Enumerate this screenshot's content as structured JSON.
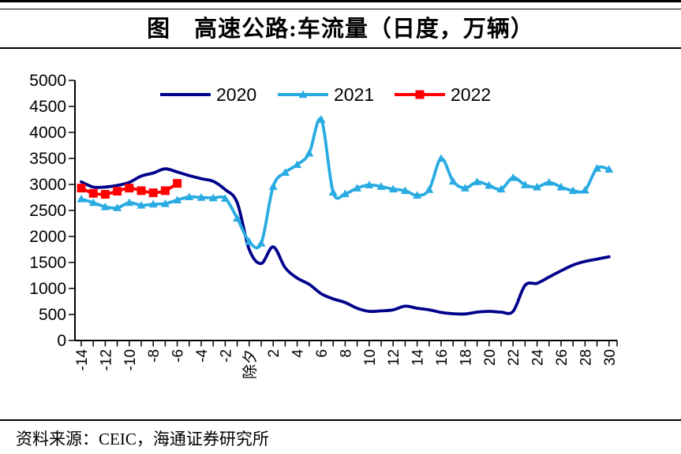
{
  "figure": {
    "title": "图　高速公路:车流量（日度，万辆）",
    "source": "资料来源：CEIC，海通证券研究所"
  },
  "colors": {
    "series_2020": "#00008B",
    "series_2021": "#29ABE2",
    "series_2022": "#FF0000",
    "axis": "#000000",
    "text": "#000000"
  },
  "chart_data": {
    "type": "line",
    "title": "高速公路:车流量（日度，万辆）",
    "xlabel": "",
    "ylabel": "",
    "ylim": [
      0,
      5000
    ],
    "yticks": [
      0,
      500,
      1000,
      1500,
      2000,
      2500,
      3000,
      3500,
      4000,
      4500,
      5000
    ],
    "grid": false,
    "legend_position": "top",
    "x": [
      -14,
      -13,
      -12,
      -11,
      -10,
      -9,
      -8,
      -7,
      -6,
      -5,
      -4,
      -3,
      -2,
      -1,
      0,
      1,
      2,
      3,
      4,
      5,
      6,
      7,
      8,
      9,
      10,
      11,
      12,
      13,
      14,
      15,
      16,
      17,
      18,
      19,
      20,
      21,
      22,
      23,
      24,
      25,
      26,
      27,
      28,
      29,
      30
    ],
    "x_labels": [
      "-14",
      "",
      "-12",
      "",
      "-10",
      "",
      "-8",
      "",
      "-6",
      "",
      "-4",
      "",
      "-2",
      "",
      "除夕",
      "",
      "2",
      "",
      "4",
      "",
      "6",
      "",
      "8",
      "",
      "10",
      "",
      "12",
      "",
      "14",
      "",
      "16",
      "",
      "18",
      "",
      "20",
      "",
      "22",
      "",
      "24",
      "",
      "26",
      "",
      "28",
      "",
      "30"
    ],
    "series": [
      {
        "name": "2020",
        "color": "#00008B",
        "marker": "none",
        "values": [
          3050,
          2950,
          2950,
          2980,
          3040,
          3160,
          3220,
          3300,
          3240,
          3170,
          3110,
          3060,
          2900,
          2650,
          1750,
          1480,
          1800,
          1400,
          1200,
          1080,
          900,
          800,
          730,
          620,
          560,
          570,
          590,
          660,
          620,
          590,
          540,
          515,
          510,
          545,
          560,
          545,
          560,
          1060,
          1100,
          1220,
          1340,
          1450,
          1520,
          1565,
          1610
        ]
      },
      {
        "name": "2021",
        "color": "#29ABE2",
        "marker": "triangle",
        "values": [
          2720,
          2650,
          2570,
          2550,
          2650,
          2600,
          2620,
          2630,
          2700,
          2760,
          2750,
          2740,
          2730,
          2350,
          1900,
          1870,
          2960,
          3230,
          3380,
          3600,
          4250,
          2850,
          2820,
          2930,
          2990,
          2960,
          2910,
          2880,
          2790,
          2900,
          3500,
          3060,
          2930,
          3050,
          2980,
          2910,
          3130,
          2990,
          2950,
          3040,
          2950,
          2880,
          2890,
          3310,
          3290
        ]
      },
      {
        "name": "2022",
        "color": "#FF0000",
        "marker": "square",
        "values": [
          2930,
          2830,
          2810,
          2870,
          2930,
          2880,
          2840,
          2880,
          3020,
          null,
          null,
          null,
          null,
          null,
          null,
          null,
          null,
          null,
          null,
          null,
          null,
          null,
          null,
          null,
          null,
          null,
          null,
          null,
          null,
          null,
          null,
          null,
          null,
          null,
          null,
          null,
          null,
          null,
          null,
          null,
          null,
          null,
          null,
          null,
          null
        ]
      }
    ]
  }
}
